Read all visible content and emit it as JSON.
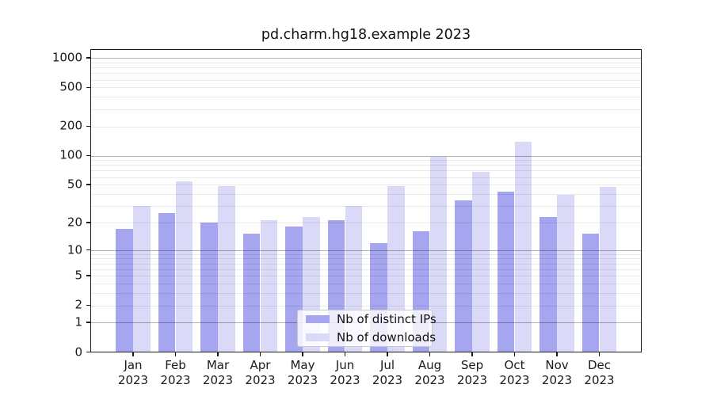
{
  "chart_data": {
    "type": "bar",
    "title": "pd.charm.hg18.example 2023",
    "categories": [
      "Jan",
      "Feb",
      "Mar",
      "Apr",
      "May",
      "Jun",
      "Jul",
      "Aug",
      "Sep",
      "Oct",
      "Nov",
      "Dec"
    ],
    "x_tick_year": "2023",
    "series": [
      {
        "name": "Nb of distinct IPs",
        "color": "#a5a5f0",
        "values": [
          17,
          25,
          20,
          15,
          18,
          21,
          12,
          16,
          34,
          42,
          23,
          15
        ]
      },
      {
        "name": "Nb of downloads",
        "color": "#dadaf8",
        "values": [
          30,
          54,
          48,
          21,
          23,
          30,
          48,
          97,
          68,
          140,
          39,
          47
        ]
      }
    ],
    "y_scale": "log10(1+y)",
    "y_ticks": [
      0,
      1,
      2,
      5,
      10,
      20,
      50,
      100,
      200,
      500,
      1000
    ],
    "grid_major": [
      1,
      10,
      100,
      1000
    ],
    "grid_minor": [
      2,
      3,
      4,
      5,
      6,
      7,
      8,
      9,
      20,
      30,
      40,
      50,
      60,
      70,
      80,
      90,
      200,
      300,
      400,
      500,
      600,
      700,
      800,
      900
    ],
    "ylim": [
      0,
      1230
    ],
    "grid": "on",
    "legend_position": "lower center",
    "xlabel": "",
    "ylabel": ""
  }
}
